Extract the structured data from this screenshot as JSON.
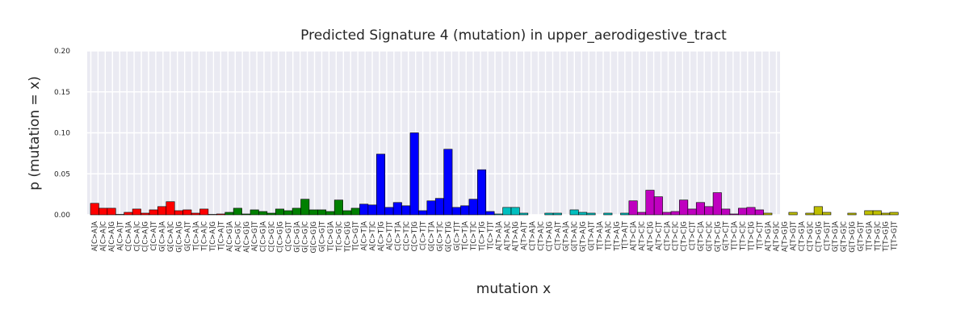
{
  "chart_data": {
    "type": "bar",
    "title": "Predicted Signature 4 (mutation) in upper_aerodigestive_tract",
    "xlabel": "mutation x",
    "ylabel": "p (mutation = x)",
    "ylim": [
      0,
      0.2
    ],
    "yticks": [
      "0.00",
      "0.05",
      "0.10",
      "0.15",
      "0.20"
    ],
    "grid": true,
    "groups": [
      {
        "name": "C>A",
        "color": "#ff0000",
        "start": 0,
        "end": 16
      },
      {
        "name": "C>G",
        "color": "#008000",
        "start": 16,
        "end": 32
      },
      {
        "name": "C>T",
        "color": "#0000ff",
        "start": 32,
        "end": 48
      },
      {
        "name": "T>A",
        "color": "#00bfbf",
        "start": 48,
        "end": 64
      },
      {
        "name": "T>C",
        "color": "#bf00bf",
        "start": 64,
        "end": 80
      },
      {
        "name": "T>G",
        "color": "#bfbf00",
        "start": 80,
        "end": 96
      }
    ],
    "categories": [
      "A[C>A]A",
      "A[C>A]C",
      "A[C>A]G",
      "A[C>A]T",
      "C[C>A]A",
      "C[C>A]C",
      "C[C>A]G",
      "C[C>A]T",
      "G[C>A]A",
      "G[C>A]C",
      "G[C>A]G",
      "G[C>A]T",
      "T[C>A]A",
      "T[C>A]C",
      "T[C>A]G",
      "T[C>A]T",
      "A[C>G]A",
      "A[C>G]C",
      "A[C>G]G",
      "A[C>G]T",
      "C[C>G]A",
      "C[C>G]C",
      "C[C>G]G",
      "C[C>G]T",
      "G[C>G]A",
      "G[C>G]C",
      "G[C>G]G",
      "G[C>G]T",
      "T[C>G]A",
      "T[C>G]C",
      "T[C>G]G",
      "T[C>G]T",
      "A[C>T]A",
      "A[C>T]C",
      "A[C>T]G",
      "A[C>T]T",
      "C[C>T]A",
      "C[C>T]C",
      "C[C>T]G",
      "C[C>T]T",
      "G[C>T]A",
      "G[C>T]C",
      "G[C>T]G",
      "G[C>T]T",
      "T[C>T]A",
      "T[C>T]C",
      "T[C>T]G",
      "T[C>T]T",
      "A[T>A]A",
      "A[T>A]C",
      "A[T>A]G",
      "A[T>A]T",
      "C[T>A]A",
      "C[T>A]C",
      "C[T>A]G",
      "C[T>A]T",
      "G[T>A]A",
      "G[T>A]C",
      "G[T>A]G",
      "G[T>A]T",
      "T[T>A]A",
      "T[T>A]C",
      "T[T>A]G",
      "T[T>A]T",
      "A[T>C]A",
      "A[T>C]C",
      "A[T>C]G",
      "A[T>C]T",
      "C[T>C]A",
      "C[T>C]C",
      "C[T>C]G",
      "C[T>C]T",
      "G[T>C]A",
      "G[T>C]C",
      "G[T>C]G",
      "G[T>C]T",
      "T[T>C]A",
      "T[T>C]C",
      "T[T>C]G",
      "T[T>C]T",
      "A[T>G]A",
      "A[T>G]C",
      "A[T>G]G",
      "A[T>G]T",
      "C[T>G]A",
      "C[T>G]C",
      "C[T>G]G",
      "C[T>G]T",
      "G[T>G]A",
      "G[T>G]C",
      "G[T>G]G",
      "G[T>G]T",
      "T[T>G]A",
      "T[T>G]C",
      "T[T>G]G",
      "T[T>G]T"
    ],
    "values": [
      0.014,
      0.008,
      0.008,
      0.0005,
      0.003,
      0.007,
      0.002,
      0.006,
      0.01,
      0.016,
      0.005,
      0.006,
      0.002,
      0.007,
      0.0005,
      0.001,
      0.003,
      0.008,
      0.001,
      0.006,
      0.004,
      0.002,
      0.007,
      0.005,
      0.008,
      0.019,
      0.006,
      0.006,
      0.004,
      0.018,
      0.005,
      0.008,
      0.013,
      0.012,
      0.074,
      0.009,
      0.015,
      0.011,
      0.1,
      0.005,
      0.017,
      0.02,
      0.08,
      0.009,
      0.011,
      0.019,
      0.055,
      0.004,
      0.001,
      0.009,
      0.009,
      0.002,
      0.0,
      0.0,
      0.002,
      0.002,
      0.0,
      0.006,
      0.003,
      0.002,
      0.0,
      0.002,
      0.0,
      0.002,
      0.017,
      0.003,
      0.03,
      0.022,
      0.003,
      0.004,
      0.018,
      0.007,
      0.015,
      0.01,
      0.027,
      0.007,
      0.001,
      0.008,
      0.009,
      0.006,
      0.002,
      0.0,
      0.0,
      0.003,
      0.0,
      0.002,
      0.01,
      0.003,
      0.0,
      0.0,
      0.002,
      0.0,
      0.005,
      0.005,
      0.002,
      0.003
    ]
  }
}
